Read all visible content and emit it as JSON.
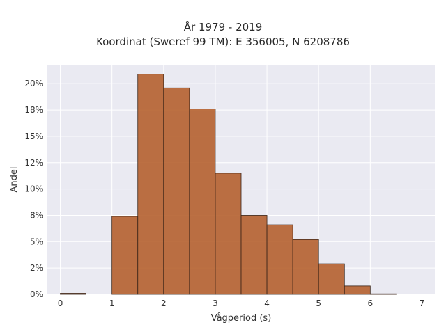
{
  "chart_data": {
    "type": "bar",
    "title": "År 1979 - 2019",
    "subtitle": "Koordinat (Sweref 99 TM): E 356005, N 6208786",
    "xlabel": "Vågperiod (s)",
    "ylabel": "Andel",
    "xlim": [
      -0.25,
      7.25
    ],
    "ylim": [
      0,
      0.218
    ],
    "x_ticks": [
      0,
      1,
      2,
      3,
      4,
      5,
      6,
      7
    ],
    "y_ticks": [
      0,
      0.025,
      0.05,
      0.075,
      0.1,
      0.125,
      0.15,
      0.175,
      0.2
    ],
    "y_tick_labels": [
      "0%",
      "2%",
      "5%",
      "8%",
      "10%",
      "12%",
      "15%",
      "18%",
      "20%"
    ],
    "bin_width": 0.5,
    "bins": [
      {
        "x0": 0.0,
        "x1": 0.5,
        "value": 0.001
      },
      {
        "x0": 0.5,
        "x1": 1.0,
        "value": 0.0
      },
      {
        "x0": 1.0,
        "x1": 1.5,
        "value": 0.074
      },
      {
        "x0": 1.5,
        "x1": 2.0,
        "value": 0.209
      },
      {
        "x0": 2.0,
        "x1": 2.5,
        "value": 0.196
      },
      {
        "x0": 2.5,
        "x1": 3.0,
        "value": 0.176
      },
      {
        "x0": 3.0,
        "x1": 3.5,
        "value": 0.115
      },
      {
        "x0": 3.5,
        "x1": 4.0,
        "value": 0.075
      },
      {
        "x0": 4.0,
        "x1": 4.5,
        "value": 0.066
      },
      {
        "x0": 4.5,
        "x1": 5.0,
        "value": 0.052
      },
      {
        "x0": 5.0,
        "x1": 5.5,
        "value": 0.029
      },
      {
        "x0": 5.5,
        "x1": 6.0,
        "value": 0.008
      },
      {
        "x0": 6.0,
        "x1": 6.5,
        "value": 0.0005
      }
    ],
    "grid": true,
    "colors": {
      "bar_fill": "#b5602f",
      "bar_edge": "#3a2418",
      "plot_bg": "#eaeaf2",
      "grid": "#ffffff"
    }
  }
}
